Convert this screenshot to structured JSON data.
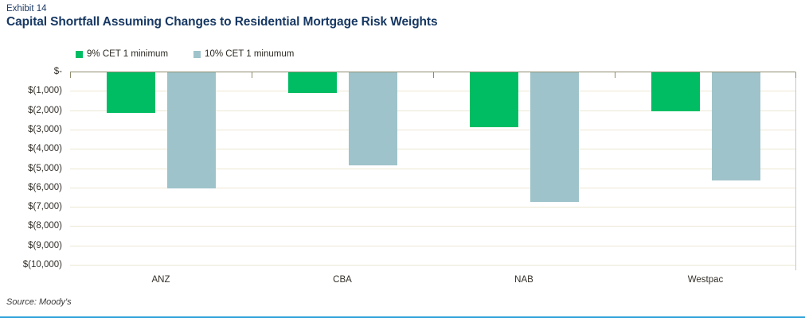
{
  "header": {
    "exhibit_label": "Exhibit 14",
    "title": "Capital Shortfall Assuming Changes to Residential Mortgage Risk Weights"
  },
  "footer": {
    "source": "Source: Moody's"
  },
  "colors": {
    "title_navy": "#173863",
    "axis_line": "#8e8c6e",
    "gridline": "#ece7d3",
    "right_border": "#c6c6c6",
    "tick": "#8e8c6e",
    "axis_text": "#34302a",
    "bottom_rule": "#2ea3da",
    "series_green": "#00bd63",
    "series_bluegray": "#9fc3ca"
  },
  "chart_data": {
    "type": "bar",
    "title": "Capital Shortfall Assuming Changes to Residential Mortgage Risk Weights",
    "categories": [
      "ANZ",
      "CBA",
      "NAB",
      "Westpac"
    ],
    "series": [
      {
        "name": "9% CET 1 minimum",
        "color": "#00bd63",
        "values": [
          -2100,
          -1050,
          -2850,
          -2000
        ]
      },
      {
        "name": "10% CET 1 minumum",
        "color": "#9fc3ca",
        "values": [
          -6000,
          -4800,
          -6700,
          -5600
        ]
      }
    ],
    "ylim": [
      -10000,
      0
    ],
    "y_tick_step": 1000,
    "y_tick_labels": [
      "$-",
      "$(1,000)",
      "$(2,000)",
      "$(3,000)",
      "$(4,000)",
      "$(5,000)",
      "$(6,000)",
      "$(7,000)",
      "$(8,000)",
      "$(9,000)",
      "$(10,000)"
    ],
    "grid": "horizontal",
    "legend_position": "top-left",
    "xlabel": "",
    "ylabel": ""
  }
}
